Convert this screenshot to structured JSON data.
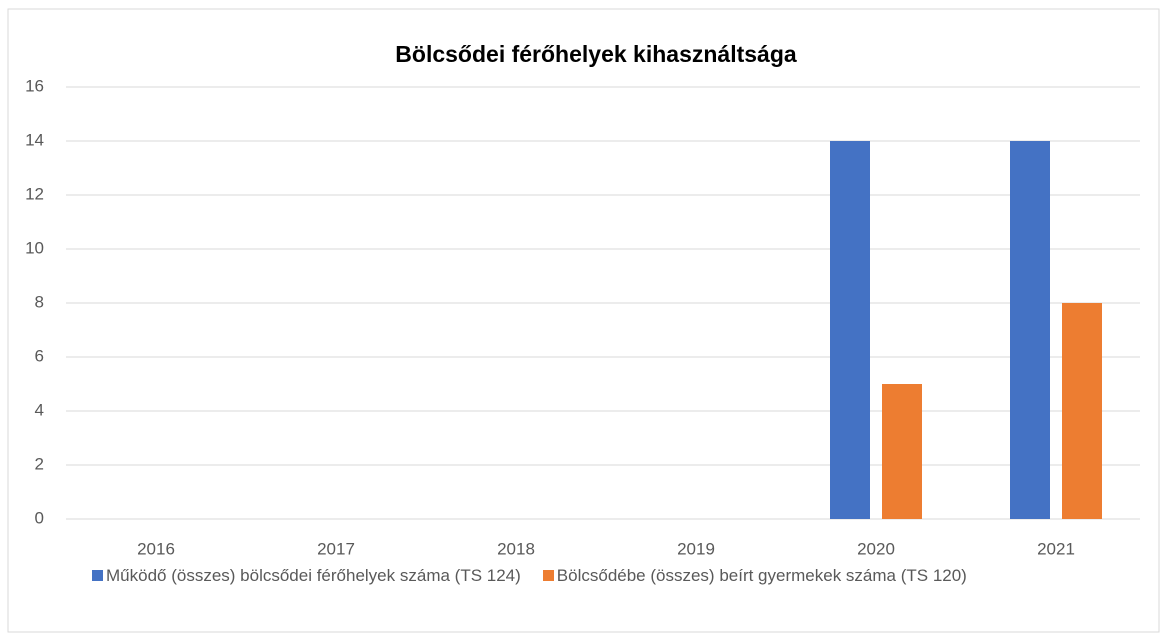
{
  "chart_data": {
    "type": "bar",
    "title": "Bölcsődei férőhelyek kihasználtsága",
    "categories": [
      "2016",
      "2017",
      "2018",
      "2019",
      "2020",
      "2021"
    ],
    "series": [
      {
        "name": "Működő (összes) bölcsődei férőhelyek száma (TS 124)",
        "color": "#4472c4",
        "values": [
          0,
          0,
          0,
          0,
          14,
          14
        ]
      },
      {
        "name": "Bölcsődébe (összes) beírt gyermekek száma (TS 120)",
        "color": "#ed7d31",
        "values": [
          0,
          0,
          0,
          0,
          5,
          8
        ]
      }
    ],
    "ylim": [
      0,
      16
    ],
    "yticks": [
      0,
      2,
      4,
      6,
      8,
      10,
      12,
      14,
      16
    ],
    "grid": true,
    "legend": "bottom"
  }
}
